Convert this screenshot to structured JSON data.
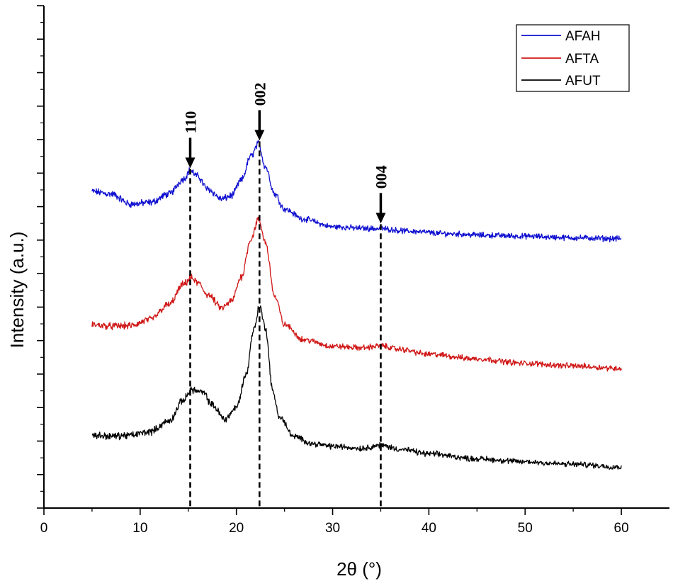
{
  "chart_data": {
    "type": "line",
    "title": "",
    "xlabel": "2θ (°)",
    "ylabel": "Intensity (a.u.)",
    "xlim": [
      0,
      65
    ],
    "xticks": [
      0,
      10,
      20,
      30,
      40,
      50,
      60
    ],
    "x_tick_labels": [
      "0",
      "10",
      "20",
      "30",
      "40",
      "50",
      "60"
    ],
    "ylim": [
      0,
      100
    ],
    "y_tick_labels_shown": false,
    "legend_position": "top-right",
    "series": [
      {
        "name": "AFAH",
        "color": "#1010d0",
        "x": [
          5,
          7,
          9,
          11,
          13,
          14.5,
          15.2,
          16,
          17,
          18.5,
          19.5,
          20.5,
          21.5,
          22.3,
          23,
          24,
          25,
          27,
          30,
          33,
          35,
          38,
          42,
          46,
          50,
          55,
          60
        ],
        "y": [
          63,
          62.5,
          60.5,
          60.8,
          62.5,
          65.5,
          67.2,
          66,
          63.5,
          61.5,
          62.2,
          65.2,
          70,
          72.5,
          68,
          62.5,
          59.5,
          57.5,
          56,
          55.7,
          55.6,
          55.1,
          54.6,
          54.3,
          54.1,
          53.8,
          53.6
        ]
      },
      {
        "name": "AFTA",
        "color": "#d01818",
        "x": [
          5,
          7,
          9,
          11,
          13,
          14.5,
          15.3,
          16,
          17,
          18.5,
          19.5,
          20.5,
          21.5,
          22.3,
          23,
          24,
          25,
          27,
          30,
          33,
          35,
          37,
          40,
          45,
          50,
          55,
          60
        ],
        "y": [
          36.5,
          36.2,
          36.3,
          37.5,
          40.5,
          44.5,
          45.8,
          44.8,
          42.5,
          39.8,
          41.2,
          46,
          53.5,
          57.5,
          53,
          42,
          36.5,
          33.5,
          32.2,
          31.9,
          32.3,
          31.6,
          30.6,
          29.7,
          28.8,
          28.3,
          27.8
        ]
      },
      {
        "name": "AFUT",
        "color": "#000000",
        "x": [
          5,
          7,
          9,
          11,
          13,
          14.5,
          15.3,
          16.5,
          17.5,
          18.8,
          20,
          21,
          21.8,
          22.4,
          23,
          23.8,
          24.5,
          26,
          28,
          30,
          33,
          35,
          37,
          40,
          45,
          50,
          55,
          60
        ],
        "y": [
          14.5,
          14.3,
          14.5,
          15.2,
          17.3,
          21.5,
          23.6,
          23,
          20.5,
          17.7,
          20,
          26.5,
          35.5,
          40.2,
          36,
          23,
          18,
          14.2,
          12.8,
          12.3,
          11.9,
          12.5,
          11.7,
          10.8,
          9.8,
          9.2,
          8.7,
          8.2
        ]
      }
    ],
    "reference_lines": [
      {
        "label": "110",
        "x": 15.2,
        "y_top": 67.5
      },
      {
        "label": "002",
        "x": 22.4,
        "y_top": 73
      },
      {
        "label": "004",
        "x": 35.0,
        "y_top": 56.5
      }
    ]
  }
}
